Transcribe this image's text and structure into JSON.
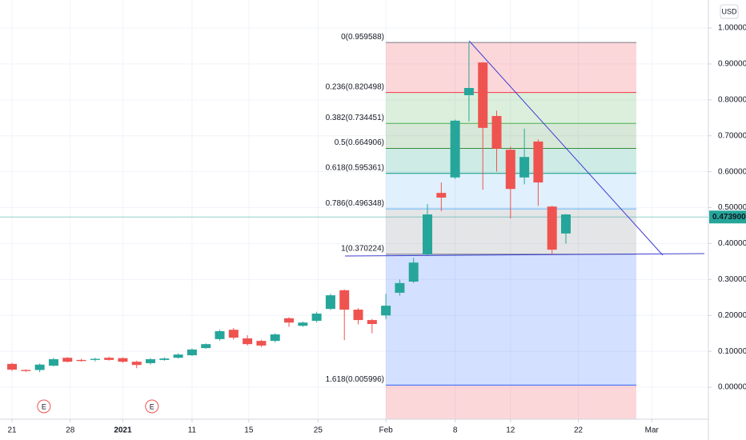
{
  "chart_data": {
    "type": "candlestick",
    "currency": "USD",
    "up_color": "#26a69a",
    "down_color": "#ef5350",
    "grid": true,
    "xlim": [
      -0.87,
      50.29
    ],
    "ylim": [
      -0.089,
      1.078
    ],
    "xticks": [
      {
        "value": 0,
        "label": "21"
      },
      {
        "value": 4.2,
        "label": "28"
      },
      {
        "value": 8,
        "label": "2021"
      },
      {
        "value": 13,
        "label": "11"
      },
      {
        "value": 17.1,
        "label": "15"
      },
      {
        "value": 22.1,
        "label": "25"
      },
      {
        "value": 27,
        "label": "Feb"
      },
      {
        "value": 32,
        "label": "8"
      },
      {
        "value": 36,
        "label": "12"
      },
      {
        "value": 40.9,
        "label": "22"
      },
      {
        "value": 46.2,
        "label": "Mar"
      }
    ],
    "yticks": [
      {
        "value": 0,
        "label": "0.000000"
      },
      {
        "value": 0.1,
        "label": "0.100000"
      },
      {
        "value": 0.2,
        "label": "0.200000"
      },
      {
        "value": 0.3,
        "label": "0.300000"
      },
      {
        "value": 0.4,
        "label": "0.400000"
      },
      {
        "value": 0.5,
        "label": "0.500000"
      },
      {
        "value": 0.6,
        "label": "0.600000"
      },
      {
        "value": 0.7,
        "label": "0.700000"
      },
      {
        "value": 0.8,
        "label": "0.800000"
      },
      {
        "value": 0.9,
        "label": "0.900000"
      },
      {
        "value": 1,
        "label": "1.000000"
      }
    ],
    "x": [
      0,
      1,
      2,
      3,
      4,
      5,
      6,
      7,
      8,
      9,
      10,
      11,
      12,
      13,
      14,
      15,
      16,
      17,
      18,
      19,
      20,
      21,
      22,
      23,
      24,
      25,
      26,
      27,
      28,
      29,
      30,
      31,
      32,
      33,
      34,
      35,
      36,
      37,
      38,
      39,
      40
    ],
    "open": [
      0.065,
      0.048,
      0.048,
      0.06,
      0.082,
      0.076,
      0.076,
      0.082,
      0.081,
      0.071,
      0.067,
      0.076,
      0.082,
      0.089,
      0.109,
      0.134,
      0.16,
      0.136,
      0.129,
      0.129,
      0.192,
      0.171,
      0.185,
      0.218,
      0.27,
      0.216,
      0.187,
      0.2,
      0.263,
      0.294,
      0.37,
      0.541,
      0.584,
      0.813,
      0.904,
      0.755,
      0.661,
      0.584,
      0.684,
      0.503,
      0.428
    ],
    "high": [
      0.068,
      0.05,
      0.066,
      0.082,
      0.084,
      0.079,
      0.082,
      0.085,
      0.083,
      0.074,
      0.081,
      0.083,
      0.094,
      0.108,
      0.122,
      0.16,
      0.165,
      0.145,
      0.132,
      0.15,
      0.195,
      0.183,
      0.21,
      0.26,
      0.272,
      0.22,
      0.19,
      0.26,
      0.3,
      0.36,
      0.51,
      0.57,
      0.745,
      0.96,
      0.905,
      0.77,
      0.67,
      0.72,
      0.69,
      0.505,
      0.482
    ],
    "low": [
      0.045,
      0.043,
      0.042,
      0.058,
      0.069,
      0.071,
      0.072,
      0.074,
      0.068,
      0.053,
      0.063,
      0.074,
      0.08,
      0.087,
      0.107,
      0.13,
      0.133,
      0.116,
      0.112,
      0.125,
      0.168,
      0.168,
      0.18,
      0.215,
      0.131,
      0.175,
      0.15,
      0.19,
      0.255,
      0.29,
      0.365,
      0.49,
      0.58,
      0.74,
      0.55,
      0.6,
      0.47,
      0.565,
      0.505,
      0.37,
      0.4
    ],
    "close": [
      0.049,
      0.045,
      0.063,
      0.078,
      0.071,
      0.073,
      0.079,
      0.076,
      0.071,
      0.062,
      0.078,
      0.08,
      0.091,
      0.105,
      0.12,
      0.156,
      0.138,
      0.12,
      0.116,
      0.147,
      0.18,
      0.18,
      0.205,
      0.256,
      0.216,
      0.187,
      0.176,
      0.227,
      0.29,
      0.347,
      0.481,
      0.528,
      0.742,
      0.833,
      0.722,
      0.664,
      0.552,
      0.641,
      0.57,
      0.383,
      0.481
    ],
    "last_price": {
      "value": 0.4739,
      "label": "0.473900",
      "color": "#26a69a"
    },
    "fib_levels": [
      {
        "label": "0(0.959588)",
        "price": 0.959588,
        "color": "#787b86"
      },
      {
        "label": "0.236(0.820498)",
        "price": 0.820498,
        "color": "#f23645"
      },
      {
        "label": "0.382(0.734451)",
        "price": 0.734451,
        "color": "#4caf50"
      },
      {
        "label": "0.5(0.664906)",
        "price": 0.664906,
        "color": "#388e3c"
      },
      {
        "label": "0.618(0.595361)",
        "price": 0.595361,
        "color": "#089981"
      },
      {
        "label": "0.786(0.496348)",
        "price": 0.496348,
        "color": "#64b5f6"
      },
      {
        "label": "1(0.370224)",
        "price": 0.370224,
        "color": "#787b86"
      },
      {
        "label": "1.618(0.005996)",
        "price": 0.005996,
        "color": "#2962ff"
      }
    ],
    "events": [
      {
        "label": "E",
        "x": 2.3
      },
      {
        "label": "E",
        "x": 10.1
      }
    ]
  }
}
